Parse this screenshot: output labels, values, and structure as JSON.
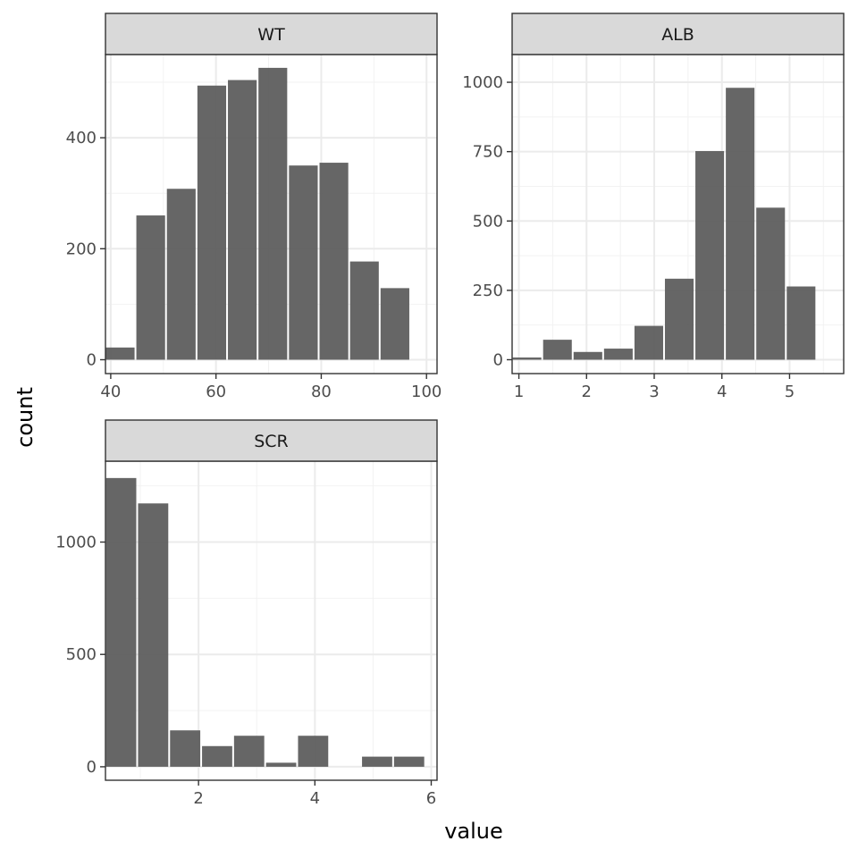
{
  "chart_data": {
    "type": "bar",
    "subtype": "faceted-histogram",
    "xlabel": "value",
    "ylabel": "count",
    "theme": "bw",
    "grid": true,
    "bar_color": "#595959",
    "bar_opacity": 0.92,
    "panels": [
      {
        "name": "WT",
        "xlim": [
          39,
          102
        ],
        "ylim": [
          -25,
          550
        ],
        "x_ticks": [
          40,
          60,
          80,
          100
        ],
        "x_tick_labels": [
          "40",
          "60",
          "80",
          "100"
        ],
        "y_ticks": [
          0,
          200,
          400
        ],
        "y_tick_labels": [
          "0",
          "200",
          "400"
        ],
        "bin_width": 5.8,
        "bins": [
          {
            "x": 41.8,
            "count": 22
          },
          {
            "x": 47.6,
            "count": 260
          },
          {
            "x": 53.4,
            "count": 308
          },
          {
            "x": 59.2,
            "count": 494
          },
          {
            "x": 65.0,
            "count": 504
          },
          {
            "x": 70.8,
            "count": 526
          },
          {
            "x": 76.6,
            "count": 350
          },
          {
            "x": 82.4,
            "count": 355
          },
          {
            "x": 88.2,
            "count": 177
          },
          {
            "x": 94.0,
            "count": 129
          }
        ]
      },
      {
        "name": "ALB",
        "xlim": [
          0.9,
          5.8
        ],
        "ylim": [
          -50,
          1100
        ],
        "x_ticks": [
          1,
          2,
          3,
          4,
          5
        ],
        "x_tick_labels": [
          "1",
          "2",
          "3",
          "4",
          "5"
        ],
        "y_ticks": [
          0,
          250,
          500,
          750,
          1000
        ],
        "y_tick_labels": [
          "0",
          "250",
          "500",
          "750",
          "1000"
        ],
        "bin_width": 0.45,
        "bins": [
          {
            "x": 1.12,
            "count": 8
          },
          {
            "x": 1.57,
            "count": 72
          },
          {
            "x": 2.02,
            "count": 28
          },
          {
            "x": 2.47,
            "count": 40
          },
          {
            "x": 2.92,
            "count": 122
          },
          {
            "x": 3.37,
            "count": 292
          },
          {
            "x": 3.82,
            "count": 752
          },
          {
            "x": 4.27,
            "count": 980
          },
          {
            "x": 4.72,
            "count": 548
          },
          {
            "x": 5.17,
            "count": 264
          }
        ]
      },
      {
        "name": "SCR",
        "xlim": [
          0.4,
          6.1
        ],
        "ylim": [
          -60,
          1360
        ],
        "x_ticks": [
          2,
          4,
          6
        ],
        "x_tick_labels": [
          "2",
          "4",
          "6"
        ],
        "y_ticks": [
          0,
          500,
          1000
        ],
        "y_tick_labels": [
          "0",
          "500",
          "1000"
        ],
        "bin_width": 0.55,
        "bins": [
          {
            "x": 0.67,
            "count": 1285
          },
          {
            "x": 1.22,
            "count": 1172
          },
          {
            "x": 1.77,
            "count": 162
          },
          {
            "x": 2.32,
            "count": 92
          },
          {
            "x": 2.87,
            "count": 138
          },
          {
            "x": 3.42,
            "count": 18
          },
          {
            "x": 3.97,
            "count": 138
          },
          {
            "x": 4.52,
            "count": 0
          },
          {
            "x": 5.07,
            "count": 45
          },
          {
            "x": 5.62,
            "count": 45
          }
        ]
      }
    ]
  }
}
